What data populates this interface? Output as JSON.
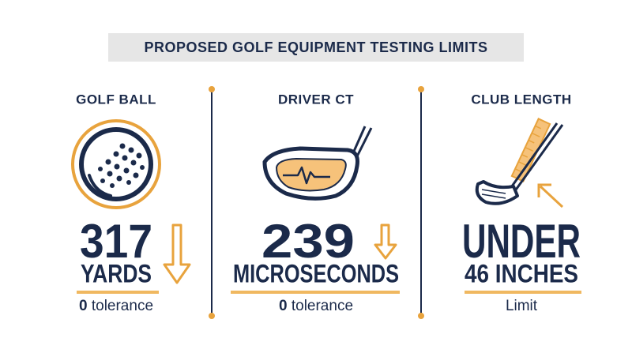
{
  "title": "PROPOSED GOLF EQUIPMENT TESTING LIMITS",
  "panels": [
    {
      "heading": "GOLF BALL",
      "value": 317,
      "unit": "YARDS",
      "note_value": "0",
      "note_text": "tolerance"
    },
    {
      "heading": "DRIVER CT",
      "value": 239,
      "unit": "MICROSECONDS",
      "note_value": "0",
      "note_text": "tolerance"
    },
    {
      "heading": "CLUB LENGTH",
      "value": "UNDER",
      "unit": "46 INCHES",
      "note_text": "Limit"
    }
  ]
}
